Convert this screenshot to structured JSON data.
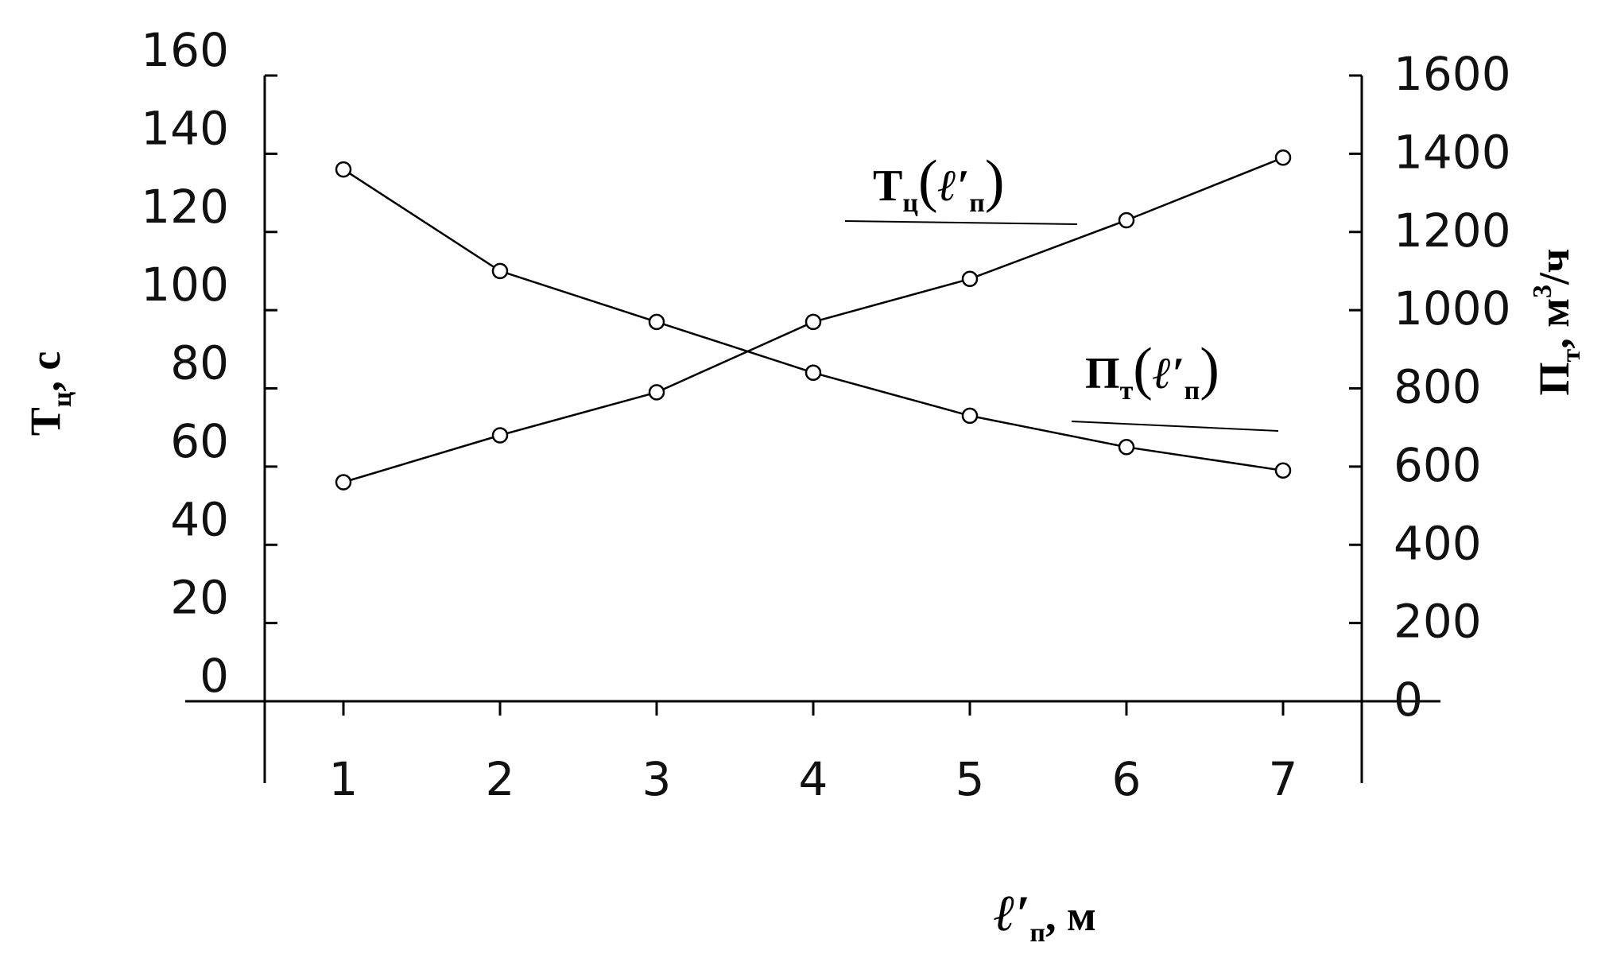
{
  "chart_data": {
    "type": "line",
    "x": [
      1,
      2,
      3,
      4,
      5,
      6,
      7
    ],
    "x_ticks": [
      "1",
      "2",
      "3",
      "4",
      "5",
      "6",
      "7"
    ],
    "xlabel": {
      "main": "ℓ′",
      "sub": "п",
      "unit": ", м"
    },
    "y_left": {
      "label": {
        "main": "Т",
        "sub": "ц",
        "unit": ", с"
      },
      "ticks": [
        "0",
        "20",
        "40",
        "60",
        "80",
        "100",
        "120",
        "140",
        "160"
      ],
      "ylim": [
        0,
        160
      ]
    },
    "y_right": {
      "label": {
        "main": "П",
        "sub": "т",
        "unit": ", м",
        "sup": "3",
        "unit2": "/ч"
      },
      "ticks": [
        "0",
        "200",
        "400",
        "600",
        "800",
        "1000",
        "1200",
        "1400",
        "1600"
      ],
      "ylim": [
        0,
        1600
      ]
    },
    "series": [
      {
        "label": {
          "main": "Т",
          "sub": "ц",
          "arg_main": "ℓ′",
          "arg_sub": "п"
        },
        "axis": "left",
        "values": [
          136,
          110,
          97,
          84,
          73,
          65,
          59
        ]
      },
      {
        "label": {
          "main": "П",
          "sub": "т",
          "arg_main": "ℓ′",
          "arg_sub": "п"
        },
        "axis": "right",
        "values": [
          560,
          680,
          790,
          970,
          1080,
          1230,
          1390
        ]
      }
    ],
    "grid": false,
    "marker": "circle"
  }
}
